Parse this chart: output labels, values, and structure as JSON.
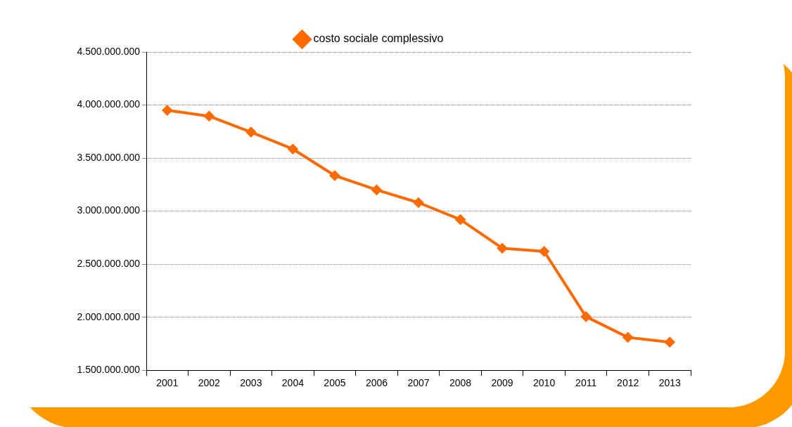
{
  "chart_data": {
    "type": "line",
    "categories": [
      "2001",
      "2002",
      "2003",
      "2004",
      "2005",
      "2006",
      "2007",
      "2008",
      "2009",
      "2010",
      "2011",
      "2012",
      "2013"
    ],
    "series": [
      {
        "name": "costo sociale complessivo",
        "color": "#ff6a00",
        "values": [
          3950000000,
          3895000000,
          3745000000,
          3585000000,
          3335000000,
          3200000000,
          3080000000,
          2920000000,
          2650000000,
          2620000000,
          2005000000,
          1810000000,
          1765000000
        ]
      }
    ],
    "ylim": [
      1500000000,
      4500000000
    ],
    "yticks": [
      {
        "value": 1500000000,
        "label": "1.500.000.000"
      },
      {
        "value": 2000000000,
        "label": "2.000.000.000"
      },
      {
        "value": 2500000000,
        "label": "2.500.000.000"
      },
      {
        "value": 3000000000,
        "label": "3.000.000.000"
      },
      {
        "value": 3500000000,
        "label": "3.500.000.000"
      },
      {
        "value": 4000000000,
        "label": "4.000.000.000"
      },
      {
        "value": 4500000000,
        "label": "4.500.000.000"
      }
    ],
    "grid": "y",
    "legend": "top",
    "marker": "diamond",
    "line_style": "solid"
  }
}
